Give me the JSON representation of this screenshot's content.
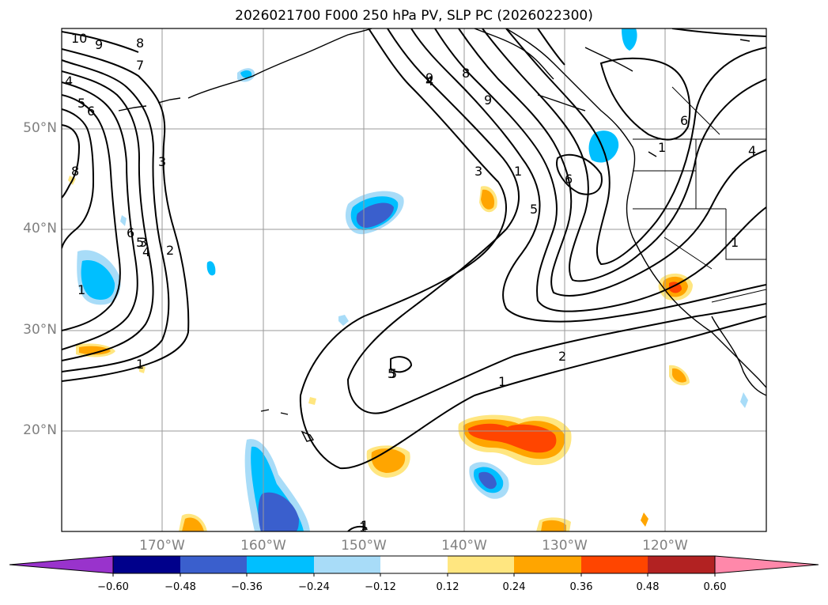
{
  "title": "2026021700 F000 250 hPa PV, SLP PC (2026022300)",
  "lat_labels": [
    "50°N",
    "40°N",
    "30°N",
    "20°N"
  ],
  "lon_labels": [
    "170°W",
    "160°W",
    "150°W",
    "140°W",
    "130°W",
    "120°W"
  ],
  "colorbar": {
    "ticks": [
      "−0.60",
      "−0.48",
      "−0.36",
      "−0.24",
      "−0.12",
      "0.12",
      "0.24",
      "0.36",
      "0.48",
      "0.60"
    ],
    "colors": [
      "#9933cc",
      "#00008b",
      "#3a5fcd",
      "#00bfff",
      "#a8dcf8",
      "#ffffff",
      "#ffe680",
      "#ffa500",
      "#ff4500",
      "#b22222",
      "#ff88aa"
    ]
  },
  "contour_labels": [
    "10",
    "9",
    "8",
    "7",
    "4",
    "5",
    "6",
    "8",
    "3",
    "2",
    "1",
    "6",
    "5",
    "4",
    "3",
    "1",
    "9",
    "4",
    "8",
    "9",
    "3",
    "1",
    "5",
    "6",
    "1",
    "6",
    "5",
    "4",
    "1",
    "1",
    "2",
    "1",
    "5",
    "1"
  ]
}
